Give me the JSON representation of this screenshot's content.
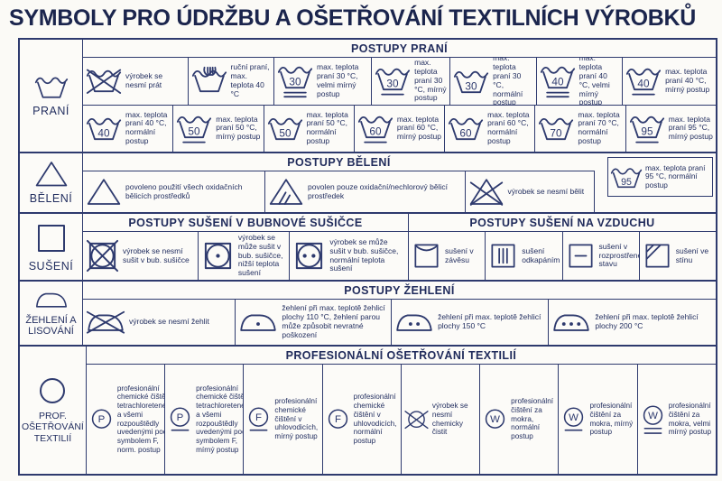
{
  "title": "SYMBOLY PRO ÚDRŽBU A OŠETŘOVÁNÍ TEXTILNÍCH VÝROBKŮ",
  "colors": {
    "line": "#2e3a6e",
    "text": "#232f60",
    "title": "#1b254d",
    "background": "#fbfaf6"
  },
  "sections": {
    "prani": {
      "label": "PRANÍ",
      "header": "POSTUPY PRANÍ",
      "row1": [
        {
          "icon": "washtub",
          "crossed": true,
          "text": "výrobek se nesmí prát"
        },
        {
          "icon": "washtub",
          "hand": true,
          "text": "ruční praní, max. teplota 40 °C"
        },
        {
          "icon": "washtub",
          "num": "30",
          "bars": 2,
          "text": "max. teplota praní 30 °C, velmi mírný postup"
        },
        {
          "icon": "washtub",
          "num": "30",
          "bars": 1,
          "text": "max. teplota praní 30 °C, mírný postup"
        },
        {
          "icon": "washtub",
          "num": "30",
          "bars": 0,
          "text": "max. teplota praní 30 °C, normální postup"
        },
        {
          "icon": "washtub",
          "num": "40",
          "bars": 2,
          "text": "max. teplota praní 40 °C, velmi mírný postup"
        },
        {
          "icon": "washtub",
          "num": "40",
          "bars": 1,
          "text": "max. teplota praní 40 °C, mírný postup"
        }
      ],
      "row2": [
        {
          "icon": "washtub",
          "num": "40",
          "bars": 0,
          "text": "max. teplota praní 40 °C, normální postup"
        },
        {
          "icon": "washtub",
          "num": "50",
          "bars": 1,
          "text": "max. teplota praní 50 °C, mírný postup"
        },
        {
          "icon": "washtub",
          "num": "50",
          "bars": 0,
          "text": "max. teplota praní 50 °C, normální postup"
        },
        {
          "icon": "washtub",
          "num": "60",
          "bars": 1,
          "text": "max. teplota praní 60 °C, mírný postup"
        },
        {
          "icon": "washtub",
          "num": "60",
          "bars": 0,
          "text": "max. teplota praní 60 °C, normální postup"
        },
        {
          "icon": "washtub",
          "num": "70",
          "bars": 0,
          "text": "max. teplota praní 70 °C, normální postup"
        },
        {
          "icon": "washtub",
          "num": "95",
          "bars": 1,
          "text": "max. teplota praní 95 °C, mírný postup"
        }
      ]
    },
    "beleni": {
      "label": "BĚLENÍ",
      "header": "POSTUPY BĚLENÍ",
      "cells": [
        {
          "icon": "triangle",
          "text": "povoleno použití všech oxidačních bělicích prostředků"
        },
        {
          "icon": "triangle-lines",
          "text": "povolen pouze oxidační/nechlorový bělicí prostředek"
        },
        {
          "icon": "triangle",
          "crossed": true,
          "text": "výrobek se nesmí bělit"
        }
      ],
      "extra_cell": {
        "icon": "washtub",
        "num": "95",
        "bars": 0,
        "text": "max. teplota praní 95 °C, normální postup"
      }
    },
    "suseni": {
      "label": "SUŠENÍ",
      "header_tumble": "POSTUPY SUŠENÍ V BUBNOVÉ SUŠIČCE",
      "header_air": "POSTUPY SUŠENÍ NA VZDUCHU",
      "tumble_cells": [
        {
          "icon": "tumble",
          "crossed": true,
          "text": "výrobek se nesmí sušit v bub. sušičce"
        },
        {
          "icon": "tumble",
          "dots": 1,
          "text": "výrobek se může sušit v bub. sušičce, nižší teplota sušení"
        },
        {
          "icon": "tumble",
          "dots": 2,
          "text": "výrobek se může sušit v bub. sušičce, normální teplota sušení"
        }
      ],
      "air_cells": [
        {
          "icon": "square-curve",
          "text": "sušení v závěsu"
        },
        {
          "icon": "square-vlines",
          "text": "sušení odkapáním"
        },
        {
          "icon": "square-hline",
          "text": "sušení v rozprostřeném stavu"
        },
        {
          "icon": "square-diag",
          "text": "sušení ve stínu"
        }
      ]
    },
    "zehleni": {
      "label": "ŽEHLENÍ A LISOVÁNÍ",
      "header": "POSTUPY ŽEHLENÍ",
      "cells": [
        {
          "icon": "iron",
          "crossed": true,
          "text": "výrobek se nesmí žehlit"
        },
        {
          "icon": "iron",
          "dots": 1,
          "text": "žehlení při max. teplotě žehlicí plochy 110 °C, žehlení parou může způsobit nevratné poškození"
        },
        {
          "icon": "iron",
          "dots": 2,
          "text": "žehlení při max. teplotě žehlicí plochy 150 °C"
        },
        {
          "icon": "iron",
          "dots": 3,
          "text": "žehlení při max. teplotě žehlicí plochy 200 °C"
        }
      ]
    },
    "prof": {
      "label": "PROF. OŠETŘOVÁNÍ TEXTILIÍ",
      "header": "PROFESIONÁLNÍ OŠETŘOVÁNÍ TEXTILIÍ",
      "cells": [
        {
          "icon": "circle",
          "letter": "P",
          "bars": 0,
          "text": "profesionální chemické čištění tetrachloretenem a všemi rozpouštědly uvedenými pod symbolem F, norm. postup"
        },
        {
          "icon": "circle",
          "letter": "P",
          "bars": 1,
          "text": "profesionální chemické čištění tetrachloretenem a všemi rozpouštědly uvedenými pod symbolem F, mírný postup"
        },
        {
          "icon": "circle",
          "letter": "F",
          "bars": 1,
          "text": "profesionální chemické čištění v uhlovodicích, mírný postup"
        },
        {
          "icon": "circle",
          "letter": "F",
          "bars": 0,
          "text": "profesionální chemické čištění v uhlovodicích, normální postup"
        },
        {
          "icon": "circle",
          "crossed": true,
          "text": "výrobek se nesmí chemicky čistit"
        },
        {
          "icon": "circle",
          "letter": "W",
          "bars": 0,
          "text": "profesionální čištění za mokra, normální postup"
        },
        {
          "icon": "circle",
          "letter": "W",
          "bars": 1,
          "text": "profesionální čištění za mokra, mírný postup"
        },
        {
          "icon": "circle",
          "letter": "W",
          "bars": 2,
          "text": "profesionální čištění za mokra, velmi mírný postup"
        }
      ]
    }
  }
}
